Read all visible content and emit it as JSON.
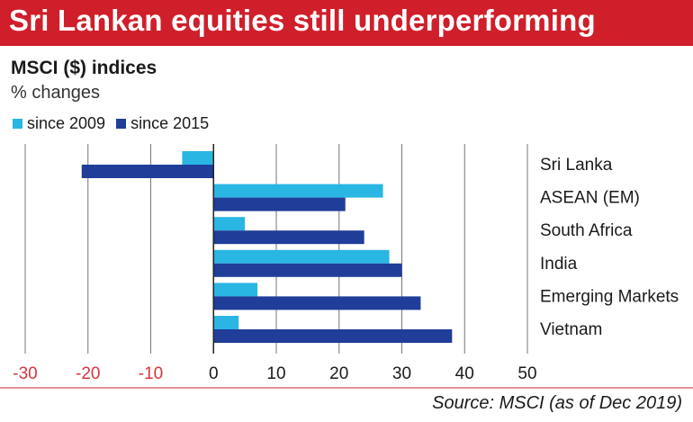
{
  "header": {
    "title": "Sri Lankan equities still underperforming",
    "banner_color": "#cf1f2a"
  },
  "chart_data": {
    "type": "bar",
    "orientation": "horizontal",
    "title": "MSCI ($) indices",
    "subtitle": "% changes",
    "categories": [
      "Sri Lanka",
      "ASEAN (EM)",
      "South Africa",
      "India",
      "Emerging Markets",
      "Vietnam"
    ],
    "series": [
      {
        "name": "since 2009",
        "color": "#29b6e3",
        "values": [
          -5,
          27,
          5,
          28,
          7,
          4
        ]
      },
      {
        "name": "since 2015",
        "color": "#1f3d99",
        "values": [
          -21,
          21,
          24,
          30,
          33,
          38
        ]
      }
    ],
    "xlim": [
      -30,
      50
    ],
    "xticks": [
      -30,
      -20,
      -10,
      0,
      10,
      20,
      30,
      40,
      50
    ],
    "negative_tick_color": "#d9343f",
    "grid": true,
    "legend_position": "top-left"
  },
  "source": "Source: MSCI (as of Dec 2019)"
}
